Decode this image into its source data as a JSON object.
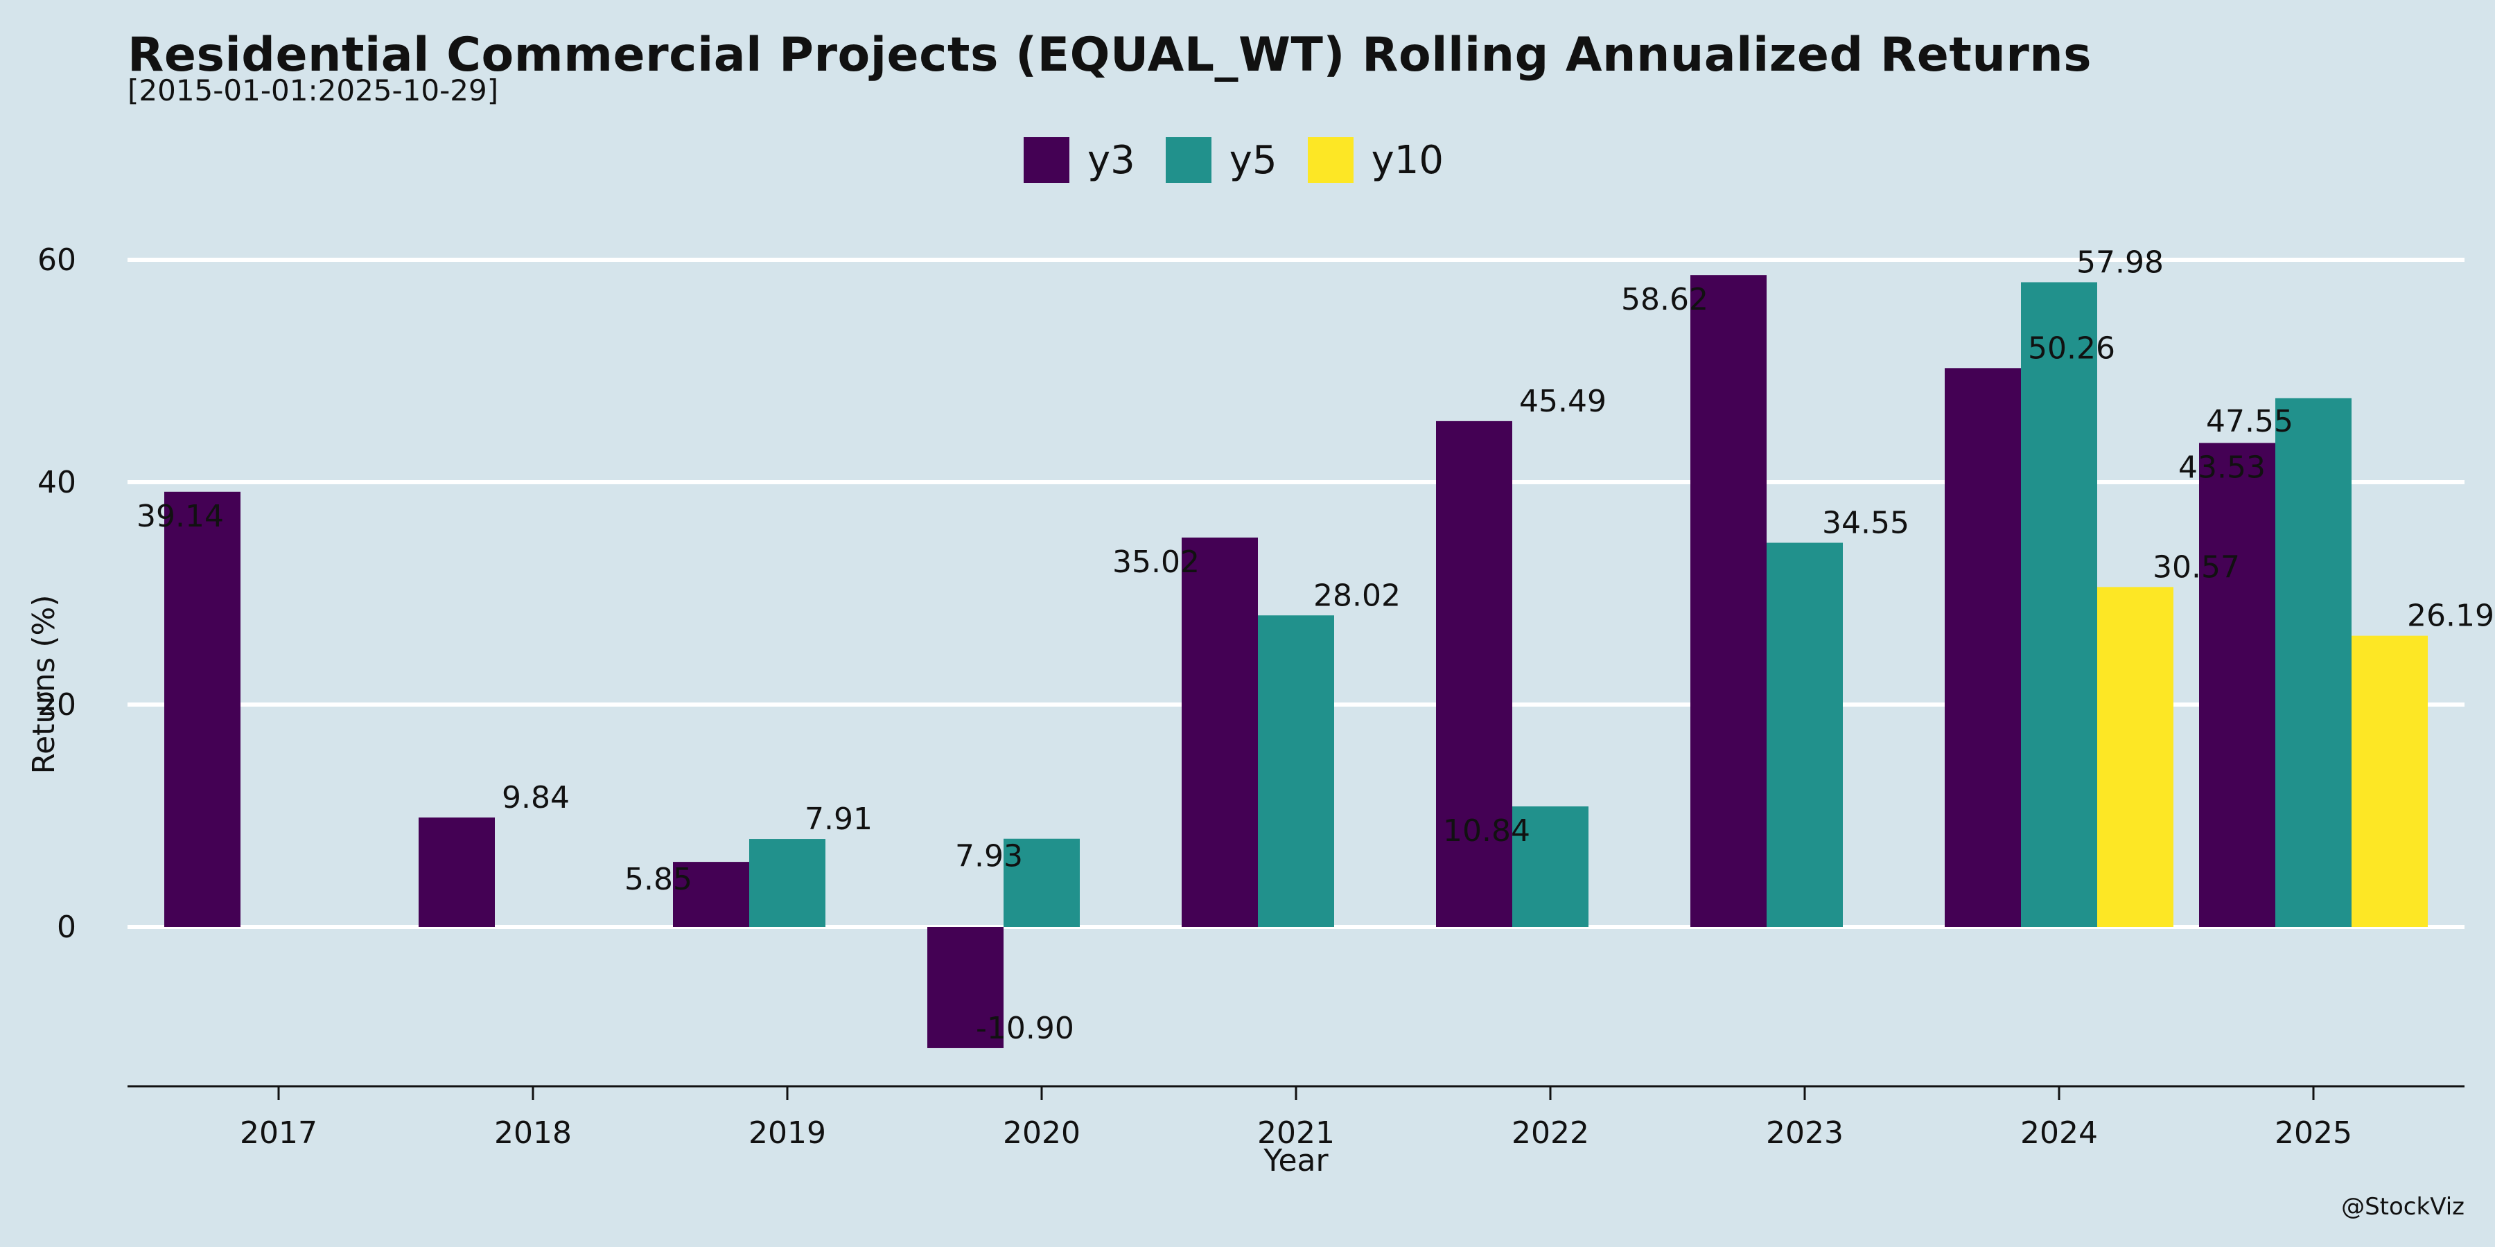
{
  "chart_data": {
    "type": "bar",
    "title": "Residential Commercial Projects (EQUAL_WT) Rolling Annualized Returns",
    "subtitle": "[2015-01-01:2025-10-29]",
    "xlabel": "Year",
    "ylabel": "Returns (%)",
    "categories": [
      "2017",
      "2018",
      "2019",
      "2020",
      "2021",
      "2022",
      "2023",
      "2024",
      "2025"
    ],
    "series": [
      {
        "name": "y3",
        "color": "#440154",
        "values": [
          39.14,
          9.84,
          5.85,
          -10.9,
          35.02,
          45.49,
          58.62,
          50.26,
          43.53
        ]
      },
      {
        "name": "y5",
        "color": "#21918c",
        "values": [
          null,
          null,
          7.91,
          7.93,
          28.02,
          10.84,
          34.55,
          57.98,
          47.55
        ]
      },
      {
        "name": "y10",
        "color": "#fde725",
        "values": [
          null,
          null,
          null,
          null,
          null,
          null,
          null,
          30.57,
          26.19
        ]
      }
    ],
    "data_labels": [
      [
        "39.14",
        "9.84",
        "5.85",
        "-10.90",
        "35.02",
        "45.49",
        "58.62",
        "50.26",
        "43.53"
      ],
      [
        null,
        null,
        "7.91",
        "7.93",
        "28.02",
        "10.84",
        "34.55",
        "57.98",
        "47.55"
      ],
      [
        null,
        null,
        null,
        null,
        null,
        null,
        null,
        "30.57",
        "26.19"
      ]
    ],
    "yticks": [
      0,
      20,
      40,
      60
    ],
    "ylim": [
      -14.3,
      60.5
    ],
    "grid": true,
    "grid_color": "#ffffff",
    "legend_position": "top-center"
  },
  "watermark": "@StockViz"
}
